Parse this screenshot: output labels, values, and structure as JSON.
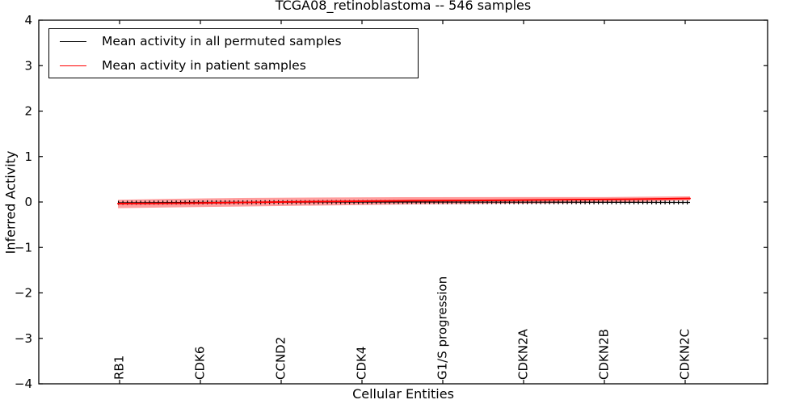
{
  "title": "TCGA08_retinoblastoma -- 546 samples",
  "legend": {
    "items": [
      {
        "label": "Mean activity in all permuted samples",
        "color": "#000000"
      },
      {
        "label": "Mean activity in patient samples",
        "color": "#ff0000"
      }
    ]
  },
  "chart_data": {
    "type": "line",
    "title": "TCGA08_retinoblastoma -- 546 samples",
    "xlabel": "Cellular Entities",
    "ylabel": "Inferred Activity",
    "ylim": [
      -4,
      4
    ],
    "xlim": [
      0,
      9.02
    ],
    "yticks": [
      -4,
      -3,
      -2,
      -1,
      0,
      1,
      2,
      3,
      4
    ],
    "ytick_labels": [
      "−4",
      "−3",
      "−2",
      "−1",
      "0",
      "1",
      "2",
      "3",
      "4"
    ],
    "categories": [
      "RB1",
      "CDK6",
      "CCND2",
      "CDK4",
      "G1/S progression",
      "CDKN2A",
      "CDKN2B",
      "CDKN2C"
    ],
    "category_x": [
      1,
      2,
      3,
      4,
      5,
      6,
      7,
      8
    ],
    "grid": false,
    "legend_position": "upper left",
    "series": [
      {
        "name": "Mean activity in all permuted samples",
        "color": "#000000",
        "marker": "|",
        "points": [
          [
            0.98,
            -0.018
          ],
          [
            2.0,
            -0.008
          ],
          [
            4.5,
            0.0
          ],
          [
            6.5,
            -0.005
          ],
          [
            8.06,
            -0.009
          ]
        ]
      },
      {
        "name": "Mean activity in patient samples",
        "color": "#ff0000",
        "marker": null,
        "points": [
          [
            0.98,
            -0.036
          ],
          [
            1.6,
            -0.03
          ],
          [
            2.5,
            -0.01
          ],
          [
            3.5,
            0.01
          ],
          [
            4.5,
            0.027
          ],
          [
            5.5,
            0.035
          ],
          [
            6.5,
            0.05
          ],
          [
            7.3,
            0.06
          ],
          [
            8.06,
            0.078
          ]
        ]
      }
    ],
    "band": {
      "name": "patient samples std band",
      "color": "rgba(255,0,0,0.38)",
      "upper": [
        [
          0.98,
          0.05
        ],
        [
          1.6,
          0.07
        ],
        [
          2.5,
          0.09
        ],
        [
          4.5,
          0.107
        ],
        [
          6.0,
          0.11
        ],
        [
          7.0,
          0.11
        ],
        [
          8.06,
          0.124
        ]
      ],
      "lower": [
        [
          0.98,
          -0.135
        ],
        [
          1.6,
          -0.12
        ],
        [
          2.5,
          -0.1
        ],
        [
          4.5,
          -0.055
        ],
        [
          6.0,
          -0.035
        ],
        [
          7.0,
          -0.02
        ],
        [
          8.06,
          0.034
        ]
      ]
    }
  }
}
